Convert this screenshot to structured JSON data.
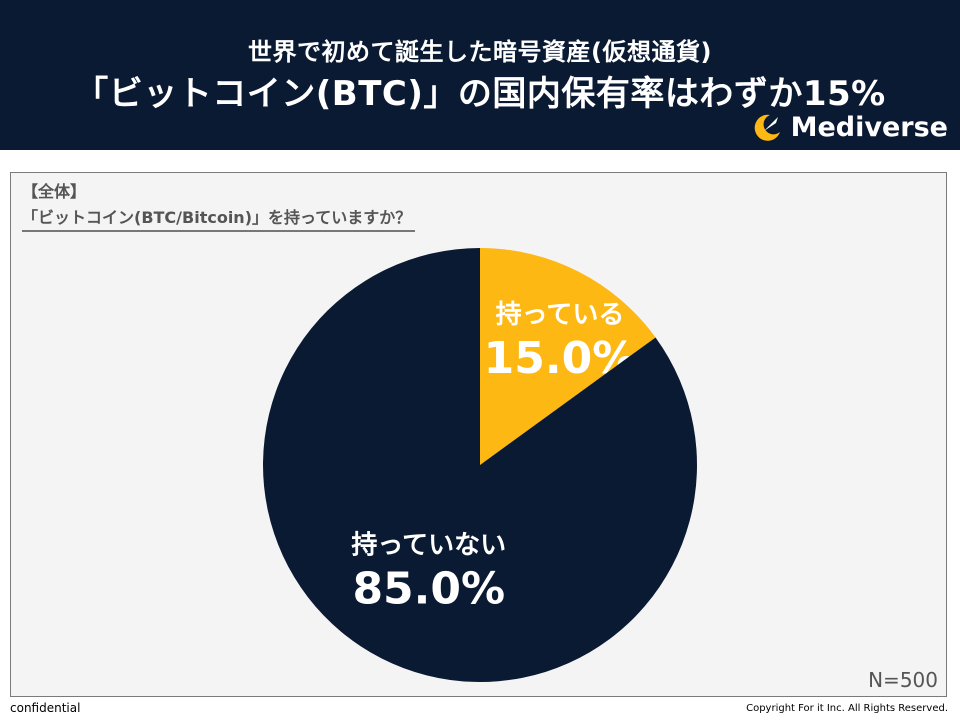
{
  "header": {
    "subtitle": "世界で初めて誕生した暗号資産(仮想通貨)",
    "title": "「ビットコイン(BTC)」の国内保有率はわずか15%",
    "brand": "Mediverse",
    "background_color": "#0b1a33",
    "logo_icon": "moon-star-logo"
  },
  "question": {
    "group": "【全体】",
    "text": "「ビットコイン(BTC/Bitcoin)」を持っていますか？"
  },
  "chart_data": {
    "type": "pie",
    "slices": [
      {
        "label": "持っている",
        "value": 15.0,
        "value_label": "15.0%",
        "color": "#fdb813"
      },
      {
        "label": "持っていない",
        "value": 85.0,
        "value_label": "85.0%",
        "color": "#0b1a33"
      }
    ]
  },
  "footer": {
    "n": "N=500",
    "confidential": "confidential",
    "copyright": "Copyright For it Inc. All Rights Reserved."
  }
}
